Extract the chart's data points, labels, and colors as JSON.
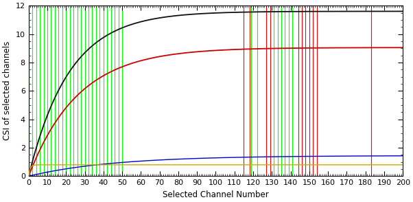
{
  "xlabel": "Selected Channel Number",
  "ylabel": "CSI of selected channels",
  "xlim": [
    0,
    200
  ],
  "ylim": [
    0,
    12
  ],
  "xticks": [
    0,
    10,
    20,
    30,
    40,
    50,
    60,
    70,
    80,
    90,
    100,
    110,
    120,
    130,
    140,
    150,
    160,
    170,
    180,
    190,
    200
  ],
  "yticks": [
    0,
    2,
    4,
    6,
    8,
    10,
    12
  ],
  "bg_color": "#ffffff",
  "green_vlines": [
    2,
    4,
    6,
    8,
    10,
    12,
    14,
    16,
    18,
    20,
    22,
    24,
    26,
    28,
    30,
    32,
    34,
    36,
    38,
    40,
    42,
    44,
    46,
    48,
    50,
    119,
    122,
    131,
    133,
    135,
    137,
    139,
    141
  ],
  "red_vlines": [
    115,
    118,
    127,
    129,
    144,
    146,
    148,
    150,
    152,
    154,
    183
  ],
  "curves": [
    {
      "name": "black",
      "color": "#111111",
      "a": 11.6,
      "b": 0.046,
      "lw": 1.3
    },
    {
      "name": "red",
      "color": "#cc0000",
      "a": 9.05,
      "b": 0.038,
      "lw": 1.3
    },
    {
      "name": "blue",
      "color": "#0000cc",
      "a": 1.45,
      "b": 0.022,
      "lw": 1.0
    },
    {
      "name": "orange",
      "color": "#ccaa00",
      "a": 0.8,
      "b": 1.2,
      "lw": 1.0
    }
  ],
  "xlabel_fontsize": 8.5,
  "ylabel_fontsize": 8.5,
  "tick_labelsize": 8.0
}
